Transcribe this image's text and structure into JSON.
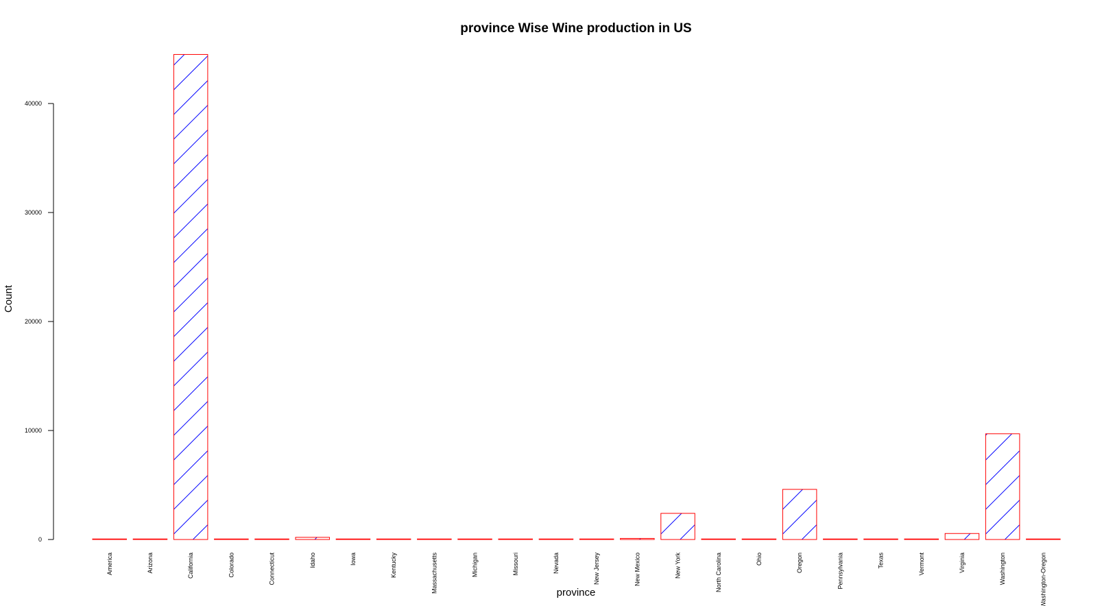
{
  "chart_data": {
    "type": "bar",
    "title": "province Wise Wine production in US",
    "xlabel": "province",
    "ylabel": "Count",
    "ylim": [
      0,
      44000
    ],
    "yticks": [
      0,
      10000,
      20000,
      30000,
      40000
    ],
    "yticklabels": [
      "0",
      "10000",
      "20000",
      "30000",
      "40000"
    ],
    "grid": false,
    "legend": "none",
    "bar_fill": "hatched",
    "colors": {
      "bar_border": "#ff0000",
      "hatch": "#0000ff",
      "axis": "#000000"
    },
    "categories": [
      "America",
      "Arizona",
      "California",
      "Colorado",
      "Connecticut",
      "Idaho",
      "Iowa",
      "Kentucky",
      "Massachusetts",
      "Michigan",
      "Missouri",
      "Nevada",
      "New Jersey",
      "New Mexico",
      "New York",
      "North Carolina",
      "Ohio",
      "Oregon",
      "Pennsylvania",
      "Texas",
      "Vermont",
      "Virginia",
      "Washington",
      "Washington-Oregon"
    ],
    "values": [
      10,
      20,
      44500,
      10,
      5,
      200,
      5,
      5,
      10,
      10,
      50,
      5,
      10,
      100,
      2400,
      10,
      20,
      4600,
      50,
      20,
      5,
      550,
      9700,
      5
    ]
  }
}
